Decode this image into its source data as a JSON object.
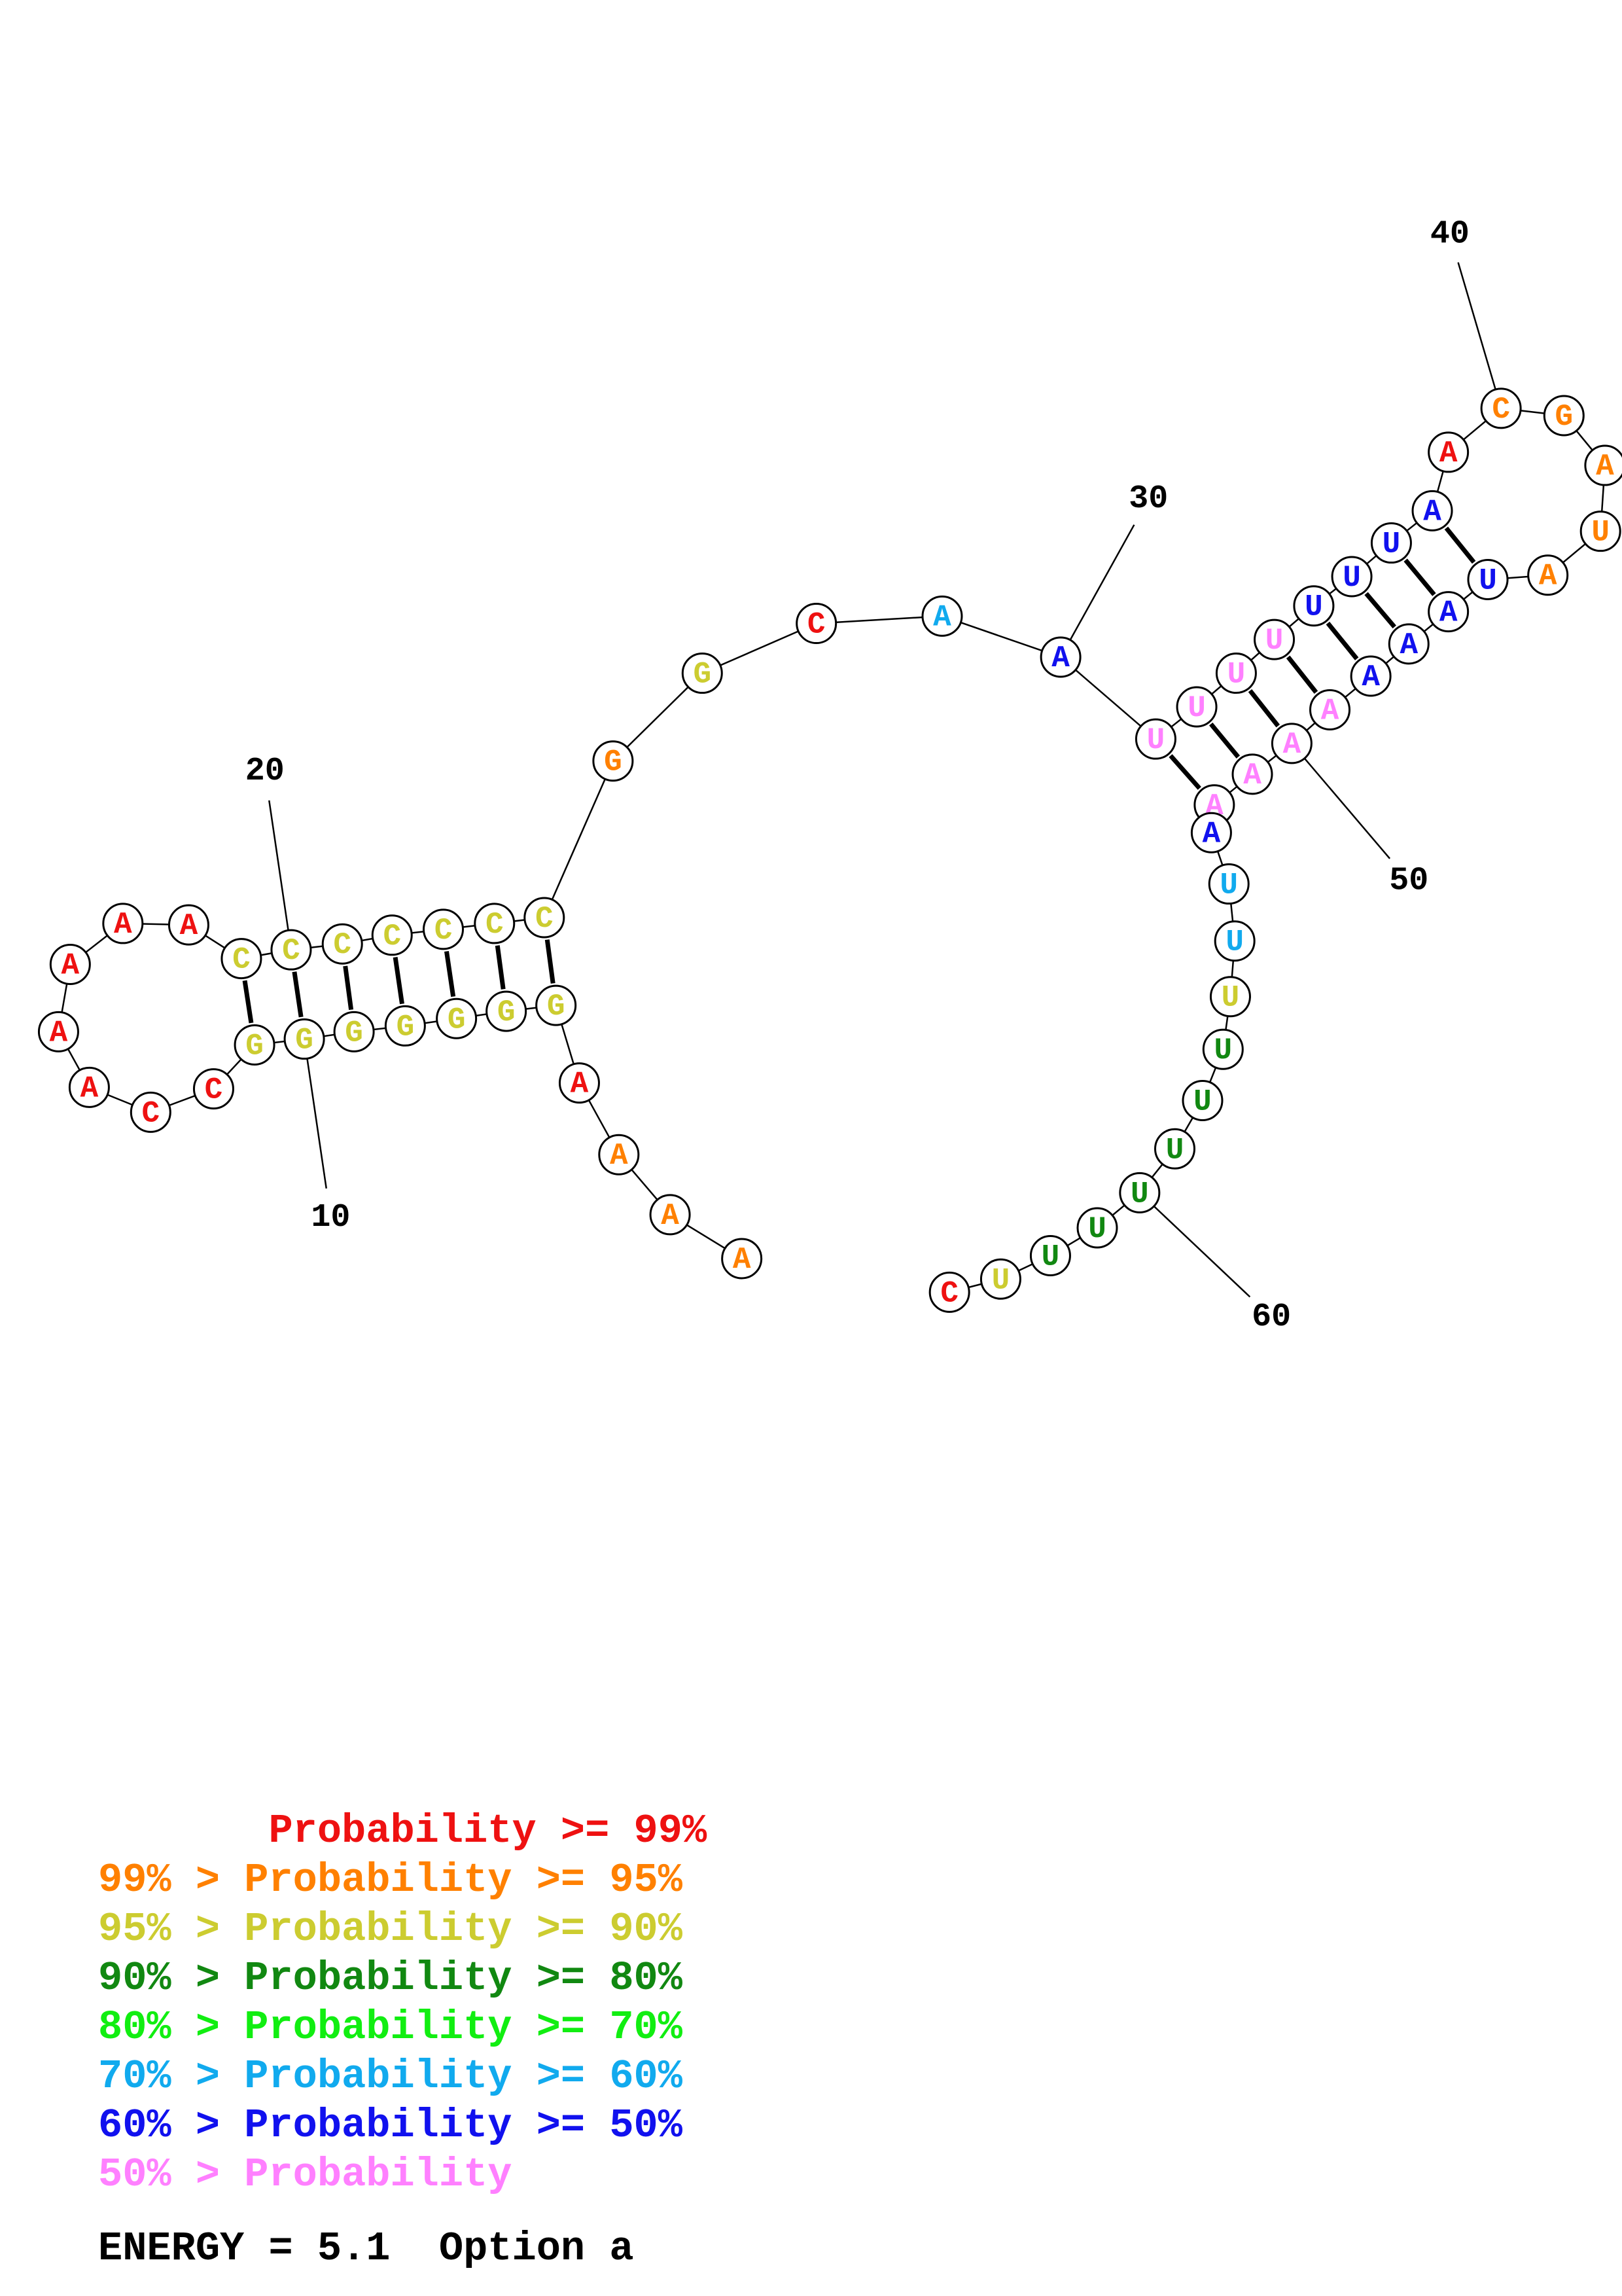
{
  "colors": {
    "p99": "#ee1111",
    "p95": "#ff8000",
    "p90": "#cccc30",
    "p80": "#118811",
    "p70": "#11ee11",
    "p60": "#11aaee",
    "p50": "#1111ee",
    "plow": "#ff80ff"
  },
  "sequence": [
    {
      "n": 1,
      "b": "A",
      "c": "p95"
    },
    {
      "n": 2,
      "b": "A",
      "c": "p95"
    },
    {
      "n": 3,
      "b": "A",
      "c": "p95"
    },
    {
      "n": 4,
      "b": "A",
      "c": "p99"
    },
    {
      "n": 5,
      "b": "G",
      "c": "p90"
    },
    {
      "n": 6,
      "b": "G",
      "c": "p90"
    },
    {
      "n": 7,
      "b": "G",
      "c": "p90"
    },
    {
      "n": 8,
      "b": "G",
      "c": "p90"
    },
    {
      "n": 9,
      "b": "G",
      "c": "p90"
    },
    {
      "n": 10,
      "b": "G",
      "c": "p90"
    },
    {
      "n": 11,
      "b": "G",
      "c": "p90"
    },
    {
      "n": 12,
      "b": "C",
      "c": "p99"
    },
    {
      "n": 13,
      "b": "C",
      "c": "p99"
    },
    {
      "n": 14,
      "b": "A",
      "c": "p99"
    },
    {
      "n": 15,
      "b": "A",
      "c": "p99"
    },
    {
      "n": 16,
      "b": "A",
      "c": "p99"
    },
    {
      "n": 17,
      "b": "A",
      "c": "p99"
    },
    {
      "n": 18,
      "b": "A",
      "c": "p99"
    },
    {
      "n": 19,
      "b": "C",
      "c": "p90"
    },
    {
      "n": 20,
      "b": "C",
      "c": "p90"
    },
    {
      "n": 21,
      "b": "C",
      "c": "p90"
    },
    {
      "n": 22,
      "b": "C",
      "c": "p90"
    },
    {
      "n": 23,
      "b": "C",
      "c": "p90"
    },
    {
      "n": 24,
      "b": "C",
      "c": "p90"
    },
    {
      "n": 25,
      "b": "C",
      "c": "p90"
    },
    {
      "n": 26,
      "b": "G",
      "c": "p95"
    },
    {
      "n": 27,
      "b": "G",
      "c": "p90"
    },
    {
      "n": 28,
      "b": "C",
      "c": "p99"
    },
    {
      "n": 29,
      "b": "A",
      "c": "p60"
    },
    {
      "n": 30,
      "b": "A",
      "c": "p50"
    },
    {
      "n": 31,
      "b": "U",
      "c": "plow"
    },
    {
      "n": 32,
      "b": "U",
      "c": "plow"
    },
    {
      "n": 33,
      "b": "U",
      "c": "plow"
    },
    {
      "n": 34,
      "b": "U",
      "c": "plow"
    },
    {
      "n": 35,
      "b": "U",
      "c": "p50"
    },
    {
      "n": 36,
      "b": "U",
      "c": "p50"
    },
    {
      "n": 37,
      "b": "U",
      "c": "p50"
    },
    {
      "n": 38,
      "b": "A",
      "c": "p50"
    },
    {
      "n": 39,
      "b": "A",
      "c": "p99"
    },
    {
      "n": 40,
      "b": "C",
      "c": "p95"
    },
    {
      "n": 41,
      "b": "G",
      "c": "p95"
    },
    {
      "n": 42,
      "b": "A",
      "c": "p95"
    },
    {
      "n": 43,
      "b": "U",
      "c": "p95"
    },
    {
      "n": 44,
      "b": "A",
      "c": "p95"
    },
    {
      "n": 45,
      "b": "U",
      "c": "p50"
    },
    {
      "n": 46,
      "b": "A",
      "c": "p50"
    },
    {
      "n": 47,
      "b": "A",
      "c": "p50"
    },
    {
      "n": 48,
      "b": "A",
      "c": "p50"
    },
    {
      "n": 49,
      "b": "A",
      "c": "plow"
    },
    {
      "n": 50,
      "b": "A",
      "c": "plow"
    },
    {
      "n": 51,
      "b": "A",
      "c": "plow"
    },
    {
      "n": 52,
      "b": "A",
      "c": "plow"
    },
    {
      "n": 53,
      "b": "A",
      "c": "p50"
    },
    {
      "n": 54,
      "b": "U",
      "c": "p60"
    },
    {
      "n": 55,
      "b": "U",
      "c": "p60"
    },
    {
      "n": 56,
      "b": "U",
      "c": "p90"
    },
    {
      "n": 57,
      "b": "U",
      "c": "p80"
    },
    {
      "n": 58,
      "b": "U",
      "c": "p80"
    },
    {
      "n": 59,
      "b": "U",
      "c": "p80"
    },
    {
      "n": 60,
      "b": "U",
      "c": "p80"
    },
    {
      "n": 61,
      "b": "U",
      "c": "p80"
    },
    {
      "n": 62,
      "b": "U",
      "c": "p80"
    },
    {
      "n": 63,
      "b": "U",
      "c": "p90"
    },
    {
      "n": 64,
      "b": "C",
      "c": "p99"
    }
  ],
  "pairs": [
    [
      5,
      25
    ],
    [
      6,
      24
    ],
    [
      7,
      23
    ],
    [
      8,
      22
    ],
    [
      9,
      21
    ],
    [
      10,
      20
    ],
    [
      11,
      19
    ],
    [
      31,
      52
    ],
    [
      32,
      51
    ],
    [
      33,
      50
    ],
    [
      34,
      49
    ],
    [
      35,
      48
    ],
    [
      36,
      47
    ],
    [
      37,
      46
    ],
    [
      38,
      45
    ]
  ],
  "position_labels": [
    {
      "n": 10,
      "text": "10"
    },
    {
      "n": 20,
      "text": "20"
    },
    {
      "n": 30,
      "text": "30"
    },
    {
      "n": 40,
      "text": "40"
    },
    {
      "n": 50,
      "text": "50"
    },
    {
      "n": 60,
      "text": "60"
    }
  ],
  "legend": [
    {
      "text": "       Probability >= 99%",
      "c": "p99"
    },
    {
      "text": "99% > Probability >= 95%",
      "c": "p95"
    },
    {
      "text": "95% > Probability >= 90%",
      "c": "p90"
    },
    {
      "text": "90% > Probability >= 80%",
      "c": "p80"
    },
    {
      "text": "80% > Probability >= 70%",
      "c": "p70"
    },
    {
      "text": "70% > Probability >= 60%",
      "c": "p60"
    },
    {
      "text": "60% > Probability >= 50%",
      "c": "p50"
    },
    {
      "text": "50% > Probability",
      "c": "plow"
    }
  ],
  "energy": "ENERGY = 5.1  Option a"
}
